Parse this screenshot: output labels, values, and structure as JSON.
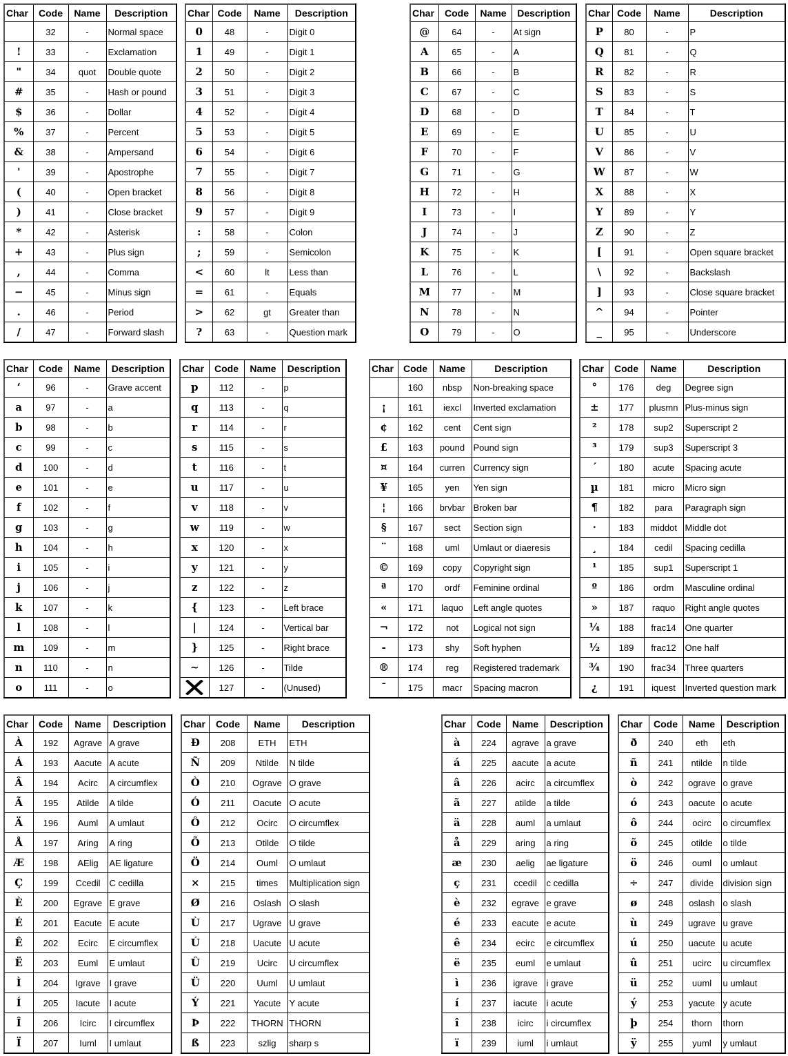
{
  "tables": [
    {
      "headers": [
        "Char",
        "Code",
        "Name",
        "Description"
      ],
      "rows": [
        [
          " ",
          "32",
          "-",
          "Normal space"
        ],
        [
          "!",
          "33",
          "-",
          "Exclamation"
        ],
        [
          "\"",
          "34",
          "quot",
          "Double quote"
        ],
        [
          "#",
          "35",
          "-",
          "Hash or pound"
        ],
        [
          "$",
          "36",
          "-",
          "Dollar"
        ],
        [
          "%",
          "37",
          "-",
          "Percent"
        ],
        [
          "&",
          "38",
          "-",
          "Ampersand"
        ],
        [
          "'",
          "39",
          "-",
          "Apostrophe"
        ],
        [
          "(",
          "40",
          "-",
          "Open bracket"
        ],
        [
          ")",
          "41",
          "-",
          "Close bracket"
        ],
        [
          "*",
          "42",
          "-",
          "Asterisk"
        ],
        [
          "+",
          "43",
          "-",
          "Plus sign"
        ],
        [
          ",",
          "44",
          "-",
          "Comma"
        ],
        [
          "−",
          "45",
          "-",
          "Minus sign"
        ],
        [
          ".",
          "46",
          "-",
          "Period"
        ],
        [
          "/",
          "47",
          "-",
          "Forward slash"
        ]
      ]
    },
    {
      "headers": [
        "Char",
        "Code",
        "Name",
        "Description"
      ],
      "rows": [
        [
          "0",
          "48",
          "-",
          "Digit 0"
        ],
        [
          "1",
          "49",
          "-",
          "Digit 1"
        ],
        [
          "2",
          "50",
          "-",
          "Digit 2"
        ],
        [
          "3",
          "51",
          "-",
          "Digit 3"
        ],
        [
          "4",
          "52",
          "-",
          "Digit 4"
        ],
        [
          "5",
          "53",
          "-",
          "Digit 5"
        ],
        [
          "6",
          "54",
          "-",
          "Digit 6"
        ],
        [
          "7",
          "55",
          "-",
          "Digit 7"
        ],
        [
          "8",
          "56",
          "-",
          "Digit 8"
        ],
        [
          "9",
          "57",
          "-",
          "Digit 9"
        ],
        [
          ":",
          "58",
          "-",
          "Colon"
        ],
        [
          ";",
          "59",
          "-",
          "Semicolon"
        ],
        [
          "<",
          "60",
          "lt",
          "Less than"
        ],
        [
          "=",
          "61",
          "-",
          "Equals"
        ],
        [
          ">",
          "62",
          "gt",
          "Greater than"
        ],
        [
          "?",
          "63",
          "-",
          "Question mark"
        ]
      ]
    },
    {
      "headers": [
        "Char",
        "Code",
        "Name",
        "Description"
      ],
      "rows": [
        [
          "@",
          "64",
          "-",
          "At sign"
        ],
        [
          "A",
          "65",
          "-",
          "A"
        ],
        [
          "B",
          "66",
          "-",
          "B"
        ],
        [
          "C",
          "67",
          "-",
          "C"
        ],
        [
          "D",
          "68",
          "-",
          "D"
        ],
        [
          "E",
          "69",
          "-",
          "E"
        ],
        [
          "F",
          "70",
          "-",
          "F"
        ],
        [
          "G",
          "71",
          "-",
          "G"
        ],
        [
          "H",
          "72",
          "-",
          "H"
        ],
        [
          "I",
          "73",
          "-",
          "I"
        ],
        [
          "J",
          "74",
          "-",
          "J"
        ],
        [
          "K",
          "75",
          "-",
          "K"
        ],
        [
          "L",
          "76",
          "-",
          "L"
        ],
        [
          "M",
          "77",
          "-",
          "M"
        ],
        [
          "N",
          "78",
          "-",
          "N"
        ],
        [
          "O",
          "79",
          "-",
          "O"
        ]
      ]
    },
    {
      "headers": [
        "Char",
        "Code",
        "Name",
        "Description"
      ],
      "rows": [
        [
          "P",
          "80",
          "-",
          "P"
        ],
        [
          "Q",
          "81",
          "-",
          "Q"
        ],
        [
          "R",
          "82",
          "-",
          "R"
        ],
        [
          "S",
          "83",
          "-",
          "S"
        ],
        [
          "T",
          "84",
          "-",
          "T"
        ],
        [
          "U",
          "85",
          "-",
          "U"
        ],
        [
          "V",
          "86",
          "-",
          "V"
        ],
        [
          "W",
          "87",
          "-",
          "W"
        ],
        [
          "X",
          "88",
          "-",
          "X"
        ],
        [
          "Y",
          "89",
          "-",
          "Y"
        ],
        [
          "Z",
          "90",
          "-",
          "Z"
        ],
        [
          "[",
          "91",
          "-",
          "Open square bracket"
        ],
        [
          "\\",
          "92",
          "-",
          "Backslash"
        ],
        [
          "]",
          "93",
          "-",
          "Close square bracket"
        ],
        [
          "^",
          "94",
          "-",
          "Pointer"
        ],
        [
          "_",
          "95",
          "-",
          "Underscore"
        ]
      ]
    },
    {
      "headers": [
        "Char",
        "Code",
        "Name",
        "Description"
      ],
      "rows": [
        [
          "‘",
          "96",
          "-",
          "Grave accent"
        ],
        [
          "a",
          "97",
          "-",
          "a"
        ],
        [
          "b",
          "98",
          "-",
          "b"
        ],
        [
          "c",
          "99",
          "-",
          "c"
        ],
        [
          "d",
          "100",
          "-",
          "d"
        ],
        [
          "e",
          "101",
          "-",
          "e"
        ],
        [
          "f",
          "102",
          "-",
          "f"
        ],
        [
          "g",
          "103",
          "-",
          "g"
        ],
        [
          "h",
          "104",
          "-",
          "h"
        ],
        [
          "i",
          "105",
          "-",
          "i"
        ],
        [
          "j",
          "106",
          "-",
          "j"
        ],
        [
          "k",
          "107",
          "-",
          "k"
        ],
        [
          "l",
          "108",
          "-",
          "l"
        ],
        [
          "m",
          "109",
          "-",
          "m"
        ],
        [
          "n",
          "110",
          "-",
          "n"
        ],
        [
          "o",
          "111",
          "-",
          "o"
        ]
      ]
    },
    {
      "headers": [
        "Char",
        "Code",
        "Name",
        "Description"
      ],
      "rows": [
        [
          "p",
          "112",
          "-",
          "p"
        ],
        [
          "q",
          "113",
          "-",
          "q"
        ],
        [
          "r",
          "114",
          "-",
          "r"
        ],
        [
          "s",
          "115",
          "-",
          "s"
        ],
        [
          "t",
          "116",
          "-",
          "t"
        ],
        [
          "u",
          "117",
          "-",
          "u"
        ],
        [
          "v",
          "118",
          "-",
          "v"
        ],
        [
          "w",
          "119",
          "-",
          "w"
        ],
        [
          "x",
          "120",
          "-",
          "x"
        ],
        [
          "y",
          "121",
          "-",
          "y"
        ],
        [
          "z",
          "122",
          "-",
          "z"
        ],
        [
          "{",
          "123",
          "-",
          "Left brace"
        ],
        [
          "|",
          "124",
          "-",
          "Vertical bar"
        ],
        [
          "}",
          "125",
          "-",
          "Right brace"
        ],
        [
          "~",
          "126",
          "-",
          "Tilde"
        ],
        [
          "",
          "127",
          "-",
          "(Unused)"
        ]
      ]
    },
    {
      "headers": [
        "Char",
        "Code",
        "Name",
        "Description"
      ],
      "rows": [
        [
          " ",
          "160",
          "nbsp",
          "Non-breaking space"
        ],
        [
          "¡",
          "161",
          "iexcl",
          "Inverted exclamation"
        ],
        [
          "¢",
          "162",
          "cent",
          "Cent sign"
        ],
        [
          "£",
          "163",
          "pound",
          "Pound sign"
        ],
        [
          "¤",
          "164",
          "curren",
          "Currency sign"
        ],
        [
          "¥",
          "165",
          "yen",
          "Yen sign"
        ],
        [
          "¦",
          "166",
          "brvbar",
          "Broken bar"
        ],
        [
          "§",
          "167",
          "sect",
          "Section sign"
        ],
        [
          "¨",
          "168",
          "uml",
          "Umlaut or diaeresis"
        ],
        [
          "©",
          "169",
          "copy",
          "Copyright sign"
        ],
        [
          "ª",
          "170",
          "ordf",
          "Feminine ordinal"
        ],
        [
          "«",
          "171",
          "laquo",
          "Left angle quotes"
        ],
        [
          "¬",
          "172",
          "not",
          "Logical not sign"
        ],
        [
          "-",
          "173",
          "shy",
          "Soft hyphen"
        ],
        [
          "®",
          "174",
          "reg",
          "Registered trademark"
        ],
        [
          "¯",
          "175",
          "macr",
          "Spacing macron"
        ]
      ]
    },
    {
      "headers": [
        "Char",
        "Code",
        "Name",
        "Description"
      ],
      "rows": [
        [
          "°",
          "176",
          "deg",
          "Degree sign"
        ],
        [
          "±",
          "177",
          "plusmn",
          "Plus-minus sign"
        ],
        [
          "²",
          "178",
          "sup2",
          "Superscript 2"
        ],
        [
          "³",
          "179",
          "sup3",
          "Superscript 3"
        ],
        [
          "´",
          "180",
          "acute",
          "Spacing acute"
        ],
        [
          "µ",
          "181",
          "micro",
          "Micro sign"
        ],
        [
          "¶",
          "182",
          "para",
          "Paragraph sign"
        ],
        [
          "·",
          "183",
          "middot",
          "Middle dot"
        ],
        [
          "¸",
          "184",
          "cedil",
          "Spacing cedilla"
        ],
        [
          "¹",
          "185",
          "sup1",
          "Superscript 1"
        ],
        [
          "º",
          "186",
          "ordm",
          "Masculine ordinal"
        ],
        [
          "»",
          "187",
          "raquo",
          "Right angle quotes"
        ],
        [
          "¼",
          "188",
          "frac14",
          "One quarter"
        ],
        [
          "½",
          "189",
          "frac12",
          "One half"
        ],
        [
          "¾",
          "190",
          "frac34",
          "Three quarters"
        ],
        [
          "¿",
          "191",
          "iquest",
          "Inverted question mark"
        ]
      ]
    },
    {
      "headers": [
        "Char",
        "Code",
        "Name",
        "Description"
      ],
      "rows": [
        [
          "À",
          "192",
          "Agrave",
          "A grave"
        ],
        [
          "Á",
          "193",
          "Aacute",
          "A acute"
        ],
        [
          "Â",
          "194",
          "Acirc",
          "A circumflex"
        ],
        [
          "Ã",
          "195",
          "Atilde",
          "A tilde"
        ],
        [
          "Ä",
          "196",
          "Auml",
          "A umlaut"
        ],
        [
          "Å",
          "197",
          "Aring",
          "A ring"
        ],
        [
          "Æ",
          "198",
          "AElig",
          "AE ligature"
        ],
        [
          "Ç",
          "199",
          "Ccedil",
          "C cedilla"
        ],
        [
          "È",
          "200",
          "Egrave",
          "E grave"
        ],
        [
          "É",
          "201",
          "Eacute",
          "E acute"
        ],
        [
          "Ê",
          "202",
          "Ecirc",
          "E circumflex"
        ],
        [
          "Ë",
          "203",
          "Euml",
          "E umlaut"
        ],
        [
          "Ì",
          "204",
          "Igrave",
          "I grave"
        ],
        [
          "Í",
          "205",
          "Iacute",
          "I acute"
        ],
        [
          "Î",
          "206",
          "Icirc",
          "I circumflex"
        ],
        [
          "Ï",
          "207",
          "Iuml",
          "I umlaut"
        ]
      ]
    },
    {
      "headers": [
        "Char",
        "Code",
        "Name",
        "Description"
      ],
      "rows": [
        [
          "Ð",
          "208",
          "ETH",
          "ETH"
        ],
        [
          "Ñ",
          "209",
          "Ntilde",
          "N tilde"
        ],
        [
          "Ò",
          "210",
          "Ograve",
          "O grave"
        ],
        [
          "Ó",
          "211",
          "Oacute",
          "O acute"
        ],
        [
          "Ô",
          "212",
          "Ocirc",
          "O circumflex"
        ],
        [
          "Õ",
          "213",
          "Otilde",
          "O tilde"
        ],
        [
          "Ö",
          "214",
          "Ouml",
          "O umlaut"
        ],
        [
          "×",
          "215",
          "times",
          "Multiplication sign"
        ],
        [
          "Ø",
          "216",
          "Oslash",
          "O slash"
        ],
        [
          "Ù",
          "217",
          "Ugrave",
          "U grave"
        ],
        [
          "Ú",
          "218",
          "Uacute",
          "U acute"
        ],
        [
          "Û",
          "219",
          "Ucirc",
          "U circumflex"
        ],
        [
          "Ü",
          "220",
          "Uuml",
          "U umlaut"
        ],
        [
          "Ý",
          "221",
          "Yacute",
          "Y acute"
        ],
        [
          "Þ",
          "222",
          "THORN",
          "THORN"
        ],
        [
          "ß",
          "223",
          "szlig",
          "sharp s"
        ]
      ]
    },
    {
      "headers": [
        "Char",
        "Code",
        "Name",
        "Description"
      ],
      "rows": [
        [
          "à",
          "224",
          "agrave",
          "a grave"
        ],
        [
          "á",
          "225",
          "aacute",
          "a acute"
        ],
        [
          "â",
          "226",
          "acirc",
          "a circumflex"
        ],
        [
          "ã",
          "227",
          "atilde",
          "a tilde"
        ],
        [
          "ä",
          "228",
          "auml",
          "a umlaut"
        ],
        [
          "å",
          "229",
          "aring",
          "a ring"
        ],
        [
          "æ",
          "230",
          "aelig",
          "ae ligature"
        ],
        [
          "ç",
          "231",
          "ccedil",
          "c cedilla"
        ],
        [
          "è",
          "232",
          "egrave",
          "e grave"
        ],
        [
          "é",
          "233",
          "eacute",
          "e acute"
        ],
        [
          "ê",
          "234",
          "ecirc",
          "e circumflex"
        ],
        [
          "ë",
          "235",
          "euml",
          "e umlaut"
        ],
        [
          "ì",
          "236",
          "igrave",
          "i grave"
        ],
        [
          "í",
          "237",
          "iacute",
          "i acute"
        ],
        [
          "î",
          "238",
          "icirc",
          "i circumflex"
        ],
        [
          "ï",
          "239",
          "iuml",
          "i umlaut"
        ]
      ]
    },
    {
      "headers": [
        "Char",
        "Code",
        "Name",
        "Description"
      ],
      "rows": [
        [
          "ð",
          "240",
          "eth",
          "eth"
        ],
        [
          "ñ",
          "241",
          "ntilde",
          "n tilde"
        ],
        [
          "ò",
          "242",
          "ograve",
          "o grave"
        ],
        [
          "ó",
          "243",
          "oacute",
          "o acute"
        ],
        [
          "ô",
          "244",
          "ocirc",
          "o circumflex"
        ],
        [
          "õ",
          "245",
          "otilde",
          "o tilde"
        ],
        [
          "ö",
          "246",
          "ouml",
          "o umlaut"
        ],
        [
          "÷",
          "247",
          "divide",
          "division sign"
        ],
        [
          "ø",
          "248",
          "oslash",
          "o slash"
        ],
        [
          "ù",
          "249",
          "ugrave",
          "u grave"
        ],
        [
          "ú",
          "250",
          "uacute",
          "u acute"
        ],
        [
          "û",
          "251",
          "ucirc",
          "u circumflex"
        ],
        [
          "ü",
          "252",
          "uuml",
          "u umlaut"
        ],
        [
          "ý",
          "253",
          "yacute",
          "y acute"
        ],
        [
          "þ",
          "254",
          "thorn",
          "thorn"
        ],
        [
          "ÿ",
          "255",
          "yuml",
          "y umlaut"
        ]
      ]
    }
  ],
  "icons": {
    "unused_char": "x-mark-icon"
  }
}
